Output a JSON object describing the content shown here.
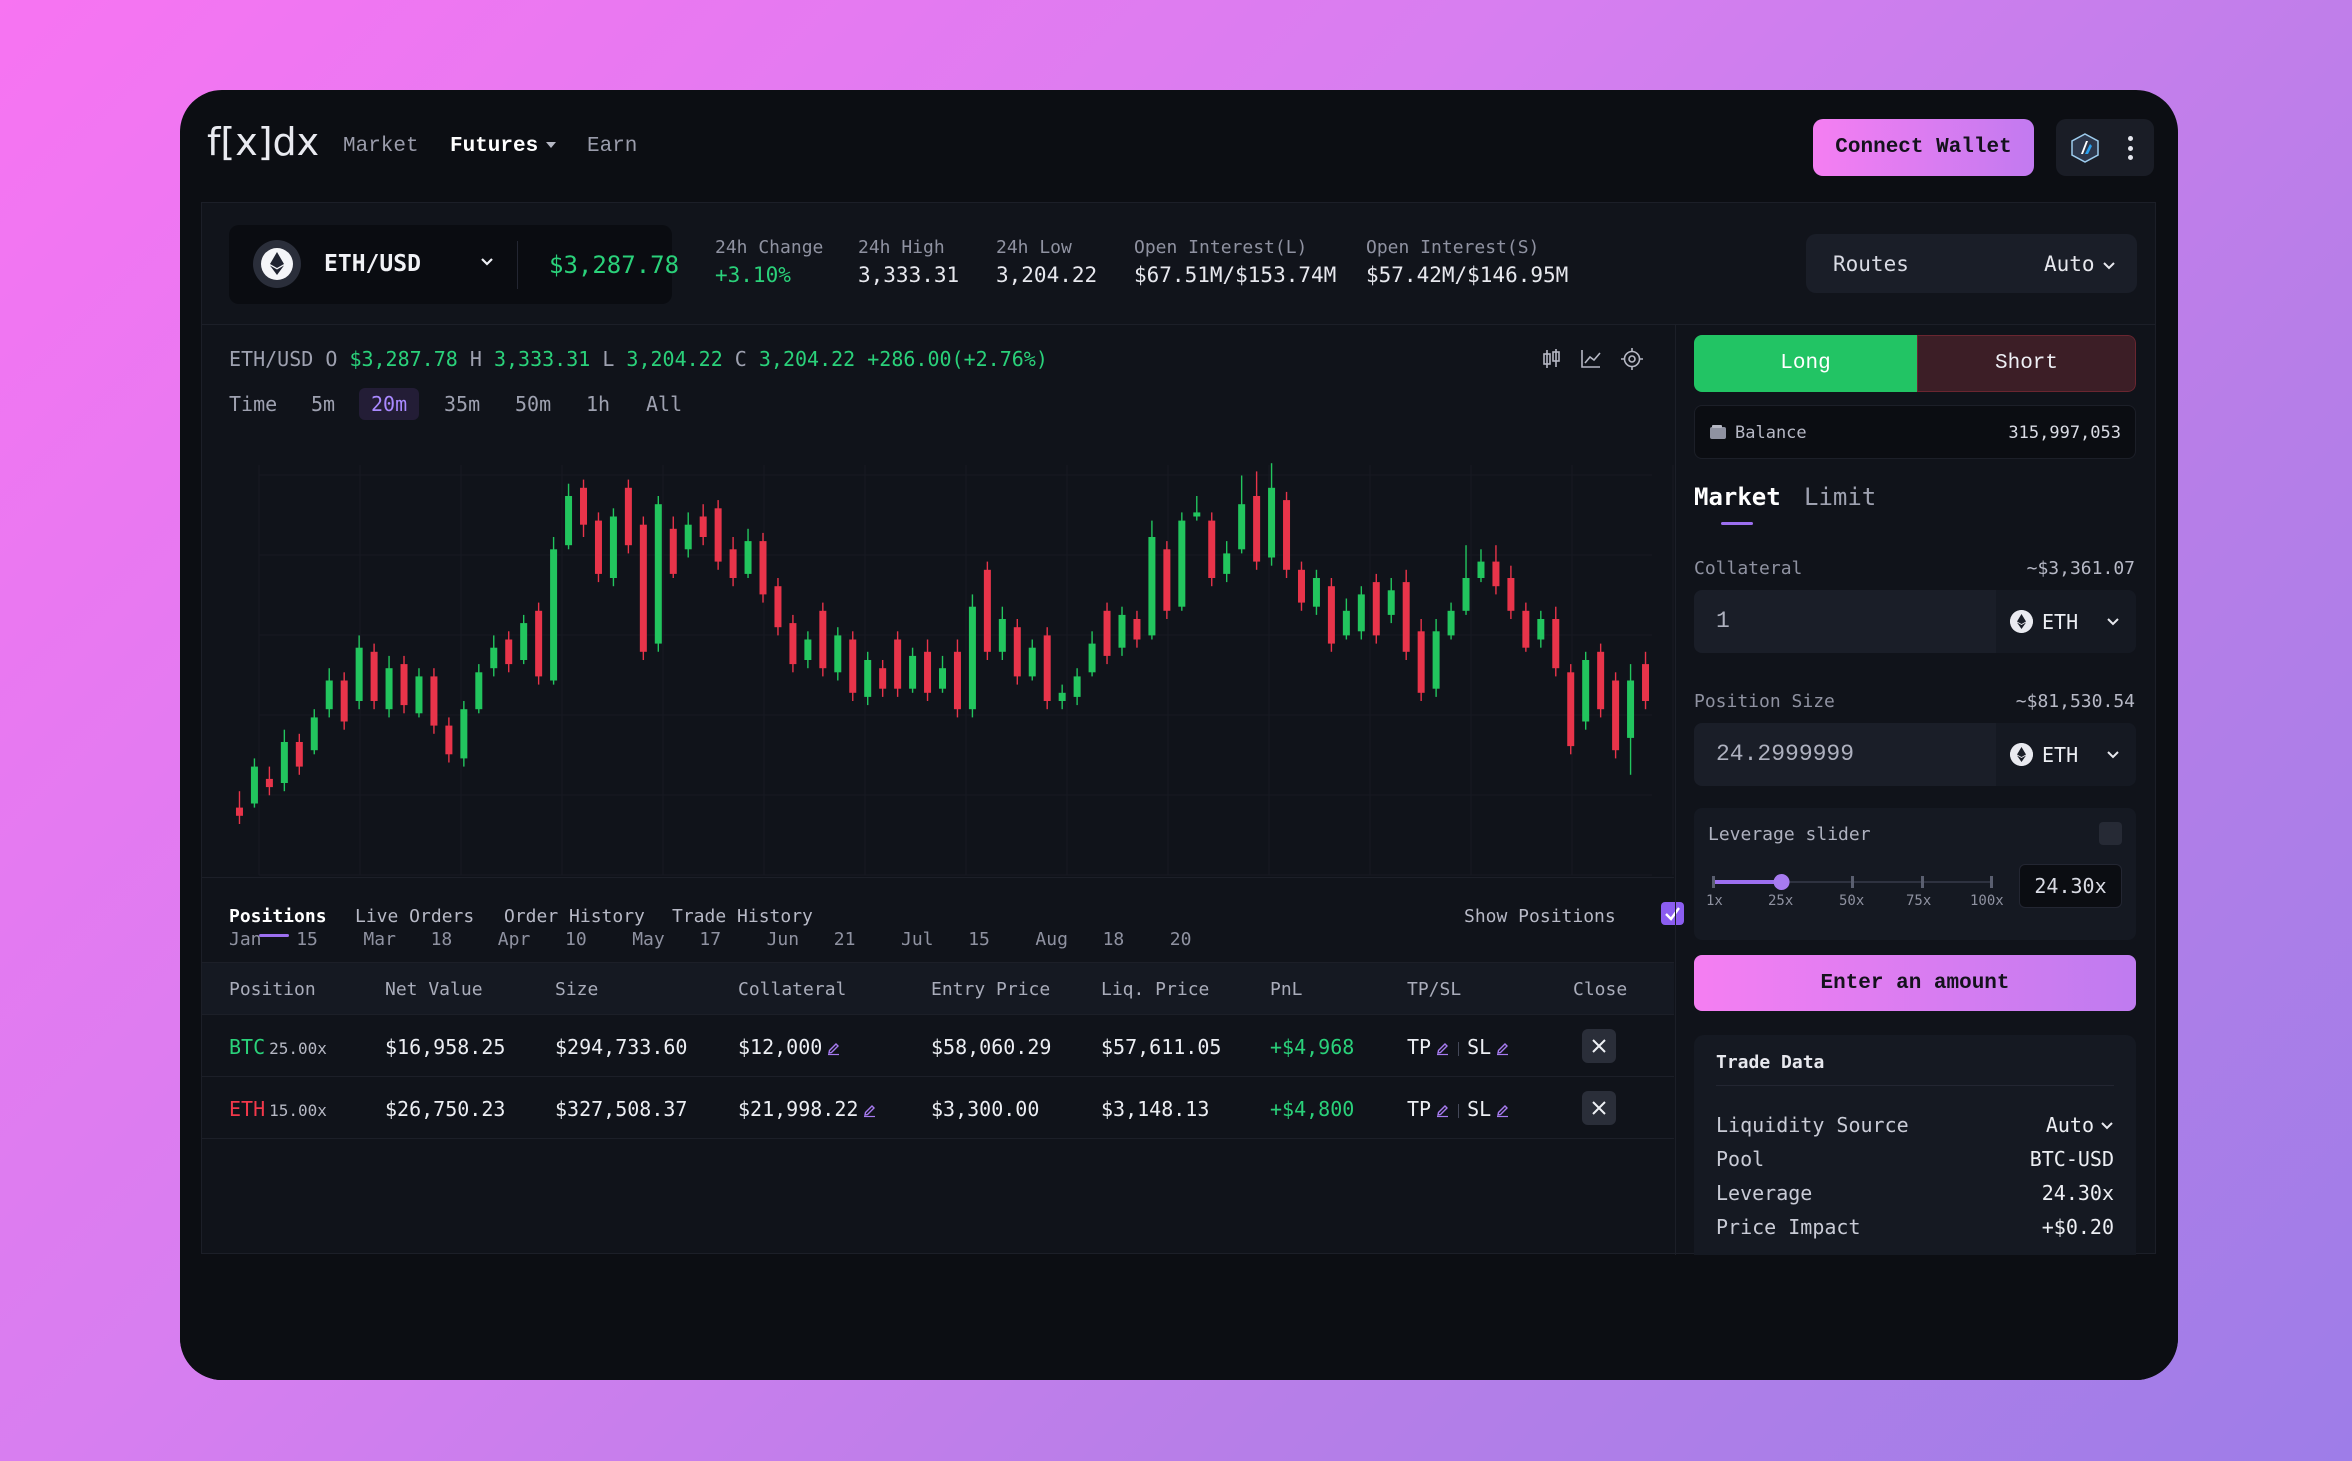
{
  "app": {
    "logo": "f[x]dx"
  },
  "nav": {
    "items": [
      "Market",
      "Futures",
      "Earn"
    ],
    "connect_label": "Connect Wallet"
  },
  "ticker": {
    "pair": "ETH/USD",
    "price": "$3,287.78",
    "stats": [
      {
        "label": "24h Change",
        "value": "+3.10%"
      },
      {
        "label": "24h High",
        "value": "3,333.31"
      },
      {
        "label": "24h Low",
        "value": "3,204.22"
      },
      {
        "label": "Open Interest(L)",
        "value": "$67.51M/$153.74M"
      },
      {
        "label": "Open Interest(S)",
        "value": "$57.42M/$146.95M"
      }
    ],
    "routes_label": "Routes",
    "routes_value": "Auto"
  },
  "chart": {
    "ohlc": {
      "pair": "ETH/USD",
      "o_label": "O",
      "o": "$3,287.78",
      "h_label": "H",
      "h": "3,333.31",
      "l_label": "L",
      "l": "3,204.22",
      "c_label": "C",
      "c": "3,204.22",
      "change": "+286.00(+2.76%)"
    },
    "timeframes": [
      "Time",
      "5m",
      "20m",
      "35m",
      "50m",
      "1h",
      "All"
    ],
    "active_timeframe": "20m",
    "x_labels": [
      "Jan",
      "15",
      "Mar",
      "18",
      "Apr",
      "10",
      "May",
      "17",
      "Jun",
      "21",
      "Jul",
      "15",
      "Aug",
      "18",
      "20"
    ],
    "colors": {
      "up": "#22c55e",
      "down": "#e8344a"
    }
  },
  "chart_data": {
    "type": "candlestick",
    "x_labels": [
      "Jan",
      "15",
      "Mar",
      "18",
      "Apr",
      "10",
      "May",
      "17",
      "Jun",
      "21",
      "Jul",
      "15",
      "Aug",
      "18",
      "20"
    ],
    "candles": [
      [
        0.14,
        0.12,
        0.18,
        0.1
      ],
      [
        0.15,
        0.24,
        0.26,
        0.14
      ],
      [
        0.21,
        0.19,
        0.24,
        0.17
      ],
      [
        0.2,
        0.3,
        0.33,
        0.18
      ],
      [
        0.3,
        0.24,
        0.32,
        0.22
      ],
      [
        0.28,
        0.36,
        0.38,
        0.27
      ],
      [
        0.38,
        0.45,
        0.48,
        0.36
      ],
      [
        0.45,
        0.35,
        0.47,
        0.33
      ],
      [
        0.4,
        0.53,
        0.56,
        0.38
      ],
      [
        0.52,
        0.4,
        0.54,
        0.38
      ],
      [
        0.38,
        0.48,
        0.51,
        0.36
      ],
      [
        0.49,
        0.39,
        0.51,
        0.37
      ],
      [
        0.37,
        0.46,
        0.48,
        0.36
      ],
      [
        0.46,
        0.34,
        0.48,
        0.32
      ],
      [
        0.34,
        0.27,
        0.36,
        0.25
      ],
      [
        0.26,
        0.38,
        0.4,
        0.24
      ],
      [
        0.38,
        0.47,
        0.49,
        0.37
      ],
      [
        0.48,
        0.53,
        0.56,
        0.46
      ],
      [
        0.55,
        0.49,
        0.57,
        0.47
      ],
      [
        0.5,
        0.59,
        0.61,
        0.49
      ],
      [
        0.62,
        0.46,
        0.64,
        0.44
      ],
      [
        0.45,
        0.77,
        0.8,
        0.44
      ],
      [
        0.78,
        0.9,
        0.93,
        0.77
      ],
      [
        0.92,
        0.83,
        0.94,
        0.8
      ],
      [
        0.84,
        0.71,
        0.86,
        0.69
      ],
      [
        0.7,
        0.85,
        0.87,
        0.68
      ],
      [
        0.92,
        0.78,
        0.94,
        0.76
      ],
      [
        0.83,
        0.52,
        0.85,
        0.5
      ],
      [
        0.54,
        0.88,
        0.9,
        0.52
      ],
      [
        0.82,
        0.71,
        0.85,
        0.7
      ],
      [
        0.77,
        0.83,
        0.86,
        0.75
      ],
      [
        0.85,
        0.8,
        0.88,
        0.78
      ],
      [
        0.87,
        0.74,
        0.89,
        0.72
      ],
      [
        0.77,
        0.7,
        0.8,
        0.68
      ],
      [
        0.71,
        0.79,
        0.82,
        0.7
      ],
      [
        0.79,
        0.66,
        0.81,
        0.64
      ],
      [
        0.68,
        0.58,
        0.7,
        0.56
      ],
      [
        0.59,
        0.49,
        0.61,
        0.47
      ],
      [
        0.5,
        0.55,
        0.57,
        0.48
      ],
      [
        0.62,
        0.48,
        0.64,
        0.46
      ],
      [
        0.47,
        0.56,
        0.58,
        0.45
      ],
      [
        0.55,
        0.42,
        0.57,
        0.4
      ],
      [
        0.41,
        0.5,
        0.52,
        0.39
      ],
      [
        0.48,
        0.43,
        0.5,
        0.41
      ],
      [
        0.55,
        0.43,
        0.57,
        0.41
      ],
      [
        0.43,
        0.51,
        0.53,
        0.42
      ],
      [
        0.52,
        0.42,
        0.55,
        0.4
      ],
      [
        0.43,
        0.48,
        0.51,
        0.42
      ],
      [
        0.52,
        0.38,
        0.55,
        0.36
      ],
      [
        0.38,
        0.63,
        0.66,
        0.36
      ],
      [
        0.72,
        0.52,
        0.74,
        0.5
      ],
      [
        0.52,
        0.6,
        0.63,
        0.5
      ],
      [
        0.58,
        0.46,
        0.6,
        0.44
      ],
      [
        0.46,
        0.53,
        0.55,
        0.45
      ],
      [
        0.56,
        0.4,
        0.58,
        0.38
      ],
      [
        0.4,
        0.42,
        0.44,
        0.38
      ],
      [
        0.41,
        0.46,
        0.48,
        0.39
      ],
      [
        0.47,
        0.54,
        0.57,
        0.46
      ],
      [
        0.62,
        0.51,
        0.64,
        0.49
      ],
      [
        0.53,
        0.61,
        0.63,
        0.51
      ],
      [
        0.6,
        0.55,
        0.62,
        0.53
      ],
      [
        0.56,
        0.8,
        0.84,
        0.55
      ],
      [
        0.77,
        0.62,
        0.79,
        0.6
      ],
      [
        0.63,
        0.84,
        0.86,
        0.62
      ],
      [
        0.85,
        0.86,
        0.9,
        0.84
      ],
      [
        0.84,
        0.7,
        0.86,
        0.68
      ],
      [
        0.71,
        0.76,
        0.79,
        0.69
      ],
      [
        0.77,
        0.88,
        0.95,
        0.76
      ],
      [
        0.9,
        0.74,
        0.96,
        0.72
      ],
      [
        0.75,
        0.92,
        0.98,
        0.73
      ],
      [
        0.89,
        0.72,
        0.91,
        0.7
      ],
      [
        0.72,
        0.64,
        0.74,
        0.62
      ],
      [
        0.63,
        0.7,
        0.72,
        0.61
      ],
      [
        0.68,
        0.54,
        0.7,
        0.52
      ],
      [
        0.56,
        0.62,
        0.65,
        0.55
      ],
      [
        0.57,
        0.66,
        0.68,
        0.55
      ],
      [
        0.69,
        0.56,
        0.71,
        0.54
      ],
      [
        0.61,
        0.67,
        0.7,
        0.59
      ],
      [
        0.69,
        0.52,
        0.72,
        0.5
      ],
      [
        0.57,
        0.42,
        0.6,
        0.4
      ],
      [
        0.43,
        0.57,
        0.6,
        0.41
      ],
      [
        0.56,
        0.62,
        0.64,
        0.55
      ],
      [
        0.62,
        0.7,
        0.78,
        0.61
      ],
      [
        0.7,
        0.74,
        0.77,
        0.69
      ],
      [
        0.74,
        0.68,
        0.78,
        0.66
      ],
      [
        0.7,
        0.62,
        0.73,
        0.6
      ],
      [
        0.62,
        0.53,
        0.64,
        0.52
      ],
      [
        0.55,
        0.6,
        0.62,
        0.53
      ],
      [
        0.6,
        0.48,
        0.63,
        0.46
      ],
      [
        0.47,
        0.29,
        0.49,
        0.27
      ],
      [
        0.35,
        0.5,
        0.52,
        0.33
      ],
      [
        0.52,
        0.38,
        0.54,
        0.36
      ],
      [
        0.45,
        0.28,
        0.47,
        0.26
      ],
      [
        0.31,
        0.45,
        0.49,
        0.22
      ],
      [
        0.49,
        0.4,
        0.52,
        0.38
      ]
    ]
  },
  "positions": {
    "tabs": [
      "Positions",
      "Live Orders",
      "Order History",
      "Trade History"
    ],
    "show_positions_label": "Show Positions",
    "columns": [
      "Position",
      "Net Value",
      "Size",
      "Collateral",
      "Entry Price",
      "Liq. Price",
      "PnL",
      "TP/SL",
      "Close"
    ],
    "rows": [
      {
        "symbol": "BTC",
        "side": "long",
        "leverage": "25.00x",
        "net_value": "$16,958.25",
        "size": "$294,733.60",
        "collateral": "$12,000",
        "entry": "$58,060.29",
        "liq": "$57,611.05",
        "pnl": "+$4,968",
        "tp": "TP",
        "sl": "SL"
      },
      {
        "symbol": "ETH",
        "side": "short",
        "leverage": "15.00x",
        "net_value": "$26,750.23",
        "size": "$327,508.37",
        "collateral": "$21,998.22",
        "entry": "$3,300.00",
        "liq": "$3,148.13",
        "pnl": "+$4,800",
        "tp": "TP",
        "sl": "SL"
      }
    ]
  },
  "trade": {
    "long_label": "Long",
    "short_label": "Short",
    "balance_label": "Balance",
    "balance_value": "315,997,053",
    "order_tabs": [
      "Market",
      "Limit"
    ],
    "collateral": {
      "label": "Collateral",
      "usd": "~$3,361.07",
      "value": "1",
      "token": "ETH"
    },
    "position_size": {
      "label": "Position Size",
      "usd": "~$81,530.54",
      "value": "24.2999999",
      "token": "ETH"
    },
    "leverage": {
      "label": "Leverage slider",
      "value": "24.30x",
      "ticks": [
        "1x",
        "25x",
        "50x",
        "75x",
        "100x"
      ],
      "level_fraction": 0.243
    },
    "enter_label": "Enter an amount",
    "trade_data": {
      "title": "Trade Data",
      "rows": [
        {
          "key": "Liquidity Source",
          "value": "Auto"
        },
        {
          "key": "Pool",
          "value": "BTC-USD"
        },
        {
          "key": "Leverage",
          "value": "24.30x"
        },
        {
          "key": "Price Impact",
          "value": "+$0.20"
        }
      ]
    }
  }
}
